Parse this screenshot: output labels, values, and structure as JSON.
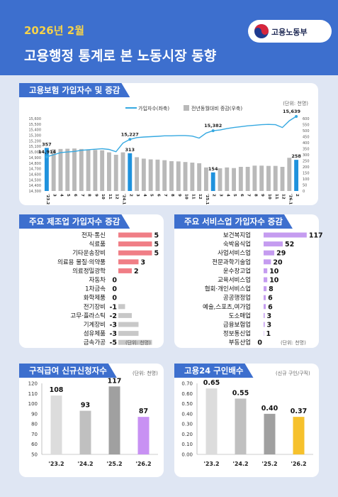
{
  "header": {
    "date": "2026년 2월",
    "title": "고용행정 통계로 본 노동시장 동향",
    "logo_text": "고용노동부",
    "logo_icon": "taegeuk-emblem-icon",
    "background": "#3d6fce",
    "date_color": "#f6d24a"
  },
  "units": {
    "thousand": "(단위: 천명)",
    "thousand_spaced": "(단위: 천명)",
    "ratio": "(신규 구인/구직)"
  },
  "colors": {
    "line": "#36a9e1",
    "bar_gray": "#b9b9b9",
    "bar_highlight": "#1f92dd",
    "manufacturing": "#f07e86",
    "service": "#c59cf0",
    "negative": "#c8c8c8",
    "feb26_claims": "#c891f3",
    "feb26_jobs": "#f6c12c"
  },
  "chart_data": [
    {
      "id": "insured",
      "title": "고용보험 가입자수 및 증감",
      "type": "bar+line",
      "legend": [
        "가입자수(좌축)",
        "전년동월대비 증감(우축)"
      ],
      "legend_placement": "top",
      "x_labels": [
        "'23.2",
        "3",
        "4",
        "5",
        "6",
        "7",
        "8",
        "9",
        "10",
        "11",
        "12",
        "'24.1",
        "2",
        "3",
        "4",
        "5",
        "6",
        "7",
        "8",
        "9",
        "10",
        "11",
        "12",
        "'25.1",
        "2",
        "3",
        "4",
        "5",
        "6",
        "7",
        "8",
        "9",
        "10",
        "11",
        "12",
        "'26.1",
        "2"
      ],
      "left_axis": {
        "ticks": [
          "15,600",
          "15,500",
          "15,400",
          "15,300",
          "15,200",
          "15,100",
          "15,000",
          "14,900",
          "14,800",
          "14,700",
          "14,600",
          "14,500",
          "14,400",
          "14,300"
        ],
        "range": [
          14300,
          15600
        ]
      },
      "right_axis": {
        "ticks": [
          "600",
          "550",
          "500",
          "450",
          "400",
          "350",
          "300",
          "250",
          "200",
          "150",
          "100",
          "50",
          "0"
        ],
        "range": [
          0,
          600
        ]
      },
      "line": [
        14914,
        14950,
        14990,
        15000,
        15010,
        15030,
        15040,
        15050,
        15060,
        15045,
        15005,
        15160,
        15227,
        15258,
        15268,
        15275,
        15282,
        15290,
        15290,
        15295,
        15296,
        15285,
        15250,
        15340,
        15382,
        15395,
        15420,
        15440,
        15455,
        15470,
        15480,
        15490,
        15495,
        15490,
        15440,
        15560,
        15639
      ],
      "bars": [
        357,
        346,
        348,
        350,
        352,
        348,
        345,
        340,
        337,
        320,
        300,
        320,
        313,
        280,
        268,
        262,
        260,
        255,
        247,
        245,
        240,
        235,
        230,
        195,
        154,
        188,
        195,
        190,
        200,
        200,
        210,
        210,
        208,
        208,
        200,
        275,
        258
      ],
      "highlight_indices": [
        0,
        12,
        24,
        36
      ],
      "line_labels": [
        {
          "i": 0,
          "text": "14,914"
        },
        {
          "i": 12,
          "text": "15,227"
        },
        {
          "i": 24,
          "text": "15,382"
        },
        {
          "i": 36,
          "text": "15,639"
        }
      ],
      "bar_labels": [
        {
          "i": 0,
          "text": "357"
        },
        {
          "i": 12,
          "text": "313"
        },
        {
          "i": 24,
          "text": "154"
        },
        {
          "i": 36,
          "text": "258"
        }
      ]
    },
    {
      "id": "manufacturing",
      "title": "주요 제조업 가입자수 증감",
      "type": "bar",
      "orientation": "horizontal",
      "categories": [
        "전자·통신",
        "식료품",
        "기타운송장비",
        "의료용 물질·의약품",
        "의료정밀광학",
        "자동차",
        "1차금속",
        "화학제품",
        "전기장비",
        "고무·플라스틱",
        "기계장비",
        "섬유제품",
        "금속가공"
      ],
      "values": [
        5,
        5,
        5,
        3,
        2,
        0,
        0,
        0,
        -1,
        -2,
        -3,
        -3,
        -5
      ],
      "labels": [
        "5",
        "5",
        "5",
        "3",
        "2",
        "0",
        "0",
        "0",
        "-1",
        "-2",
        "-3",
        "-3",
        "-5"
      ]
    },
    {
      "id": "service",
      "title": "주요 서비스업 가입자수 증감",
      "type": "bar",
      "orientation": "horizontal",
      "categories": [
        "보건복지업",
        "숙박음식업",
        "사업서비스업",
        "전문과학기술업",
        "운수창고업",
        "교육서비스업",
        "협회·개인서비스업",
        "공공행정업",
        "예술,스포츠,여가업",
        "도소매업",
        "금융보험업",
        "정보통신업",
        "부동산업"
      ],
      "values": [
        117,
        52,
        29,
        20,
        10,
        10,
        8,
        6,
        6,
        3,
        3,
        1,
        0
      ],
      "labels": [
        "117",
        "52",
        "29",
        "20",
        "10",
        "10",
        "8",
        "6",
        "6",
        "3",
        "3",
        "1",
        "0"
      ]
    },
    {
      "id": "claims",
      "title": "구직급여 신규신청자수",
      "type": "bar",
      "categories": [
        "'23.2",
        "'24.2",
        "'25.2",
        "'26.2"
      ],
      "values": [
        108,
        93,
        117,
        87
      ],
      "labels": [
        "108",
        "93",
        "117",
        "87"
      ],
      "bar_colors": [
        "#dcdcdc",
        "#c0c0c0",
        "#a0a0a0",
        "#c891f3"
      ],
      "y_ticks": [
        "120",
        "110",
        "100",
        "90",
        "80",
        "70",
        "60",
        "50"
      ],
      "ylim": [
        50,
        120
      ]
    },
    {
      "id": "jobs_ratio",
      "title": "고용24 구인배수",
      "type": "bar",
      "categories": [
        "'23.2",
        "'24.2",
        "'25.2",
        "'26.2"
      ],
      "values": [
        0.65,
        0.55,
        0.4,
        0.37
      ],
      "labels": [
        "0.65",
        "0.55",
        "0.40",
        "0.37"
      ],
      "bar_colors": [
        "#dcdcdc",
        "#c0c0c0",
        "#a0a0a0",
        "#f6c12c"
      ],
      "y_ticks": [
        "0.70",
        "0.60",
        "0.50",
        "0.40",
        "0.30",
        "0.20",
        "0.10",
        "0.00"
      ],
      "ylim": [
        0,
        0.7
      ]
    }
  ]
}
